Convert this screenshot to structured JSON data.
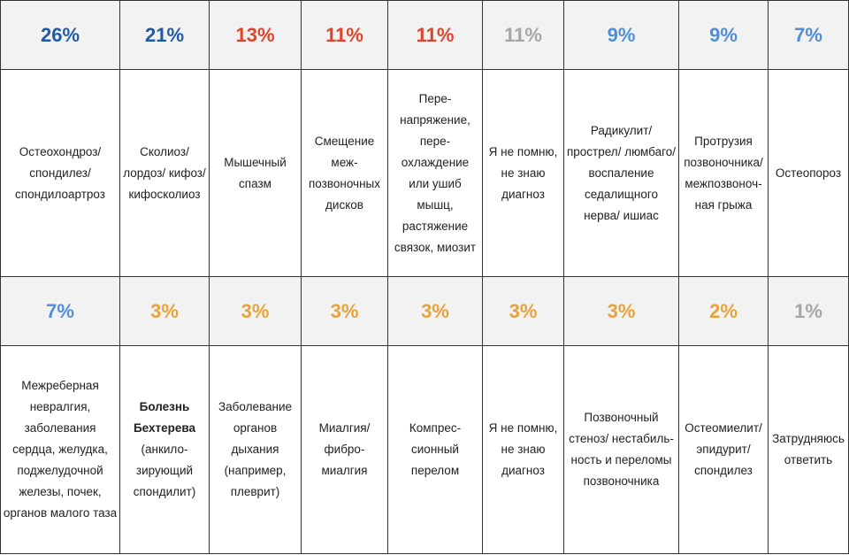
{
  "chart_data": {
    "type": "table",
    "title": "",
    "rows": [
      {
        "cells": [
          {
            "percent": "26%",
            "value": 26,
            "color": "#1f5aa6",
            "label": "Остеохондроз/ спондилез/ спондилоартроз"
          },
          {
            "percent": "21%",
            "value": 21,
            "color": "#1f5aa6",
            "label": "Сколиоз/ лордоз/ кифоз/ кифосколиоз"
          },
          {
            "percent": "13%",
            "value": 13,
            "color": "#e0432c",
            "label": "Мышечный спазм"
          },
          {
            "percent": "11%",
            "value": 11,
            "color": "#e0432c",
            "label": "Смещение меж- позвоночных дисков"
          },
          {
            "percent": "11%",
            "value": 11,
            "color": "#e0432c",
            "label": "Пере- напряжение, пере- охлаждение или ушиб мышц, растяжение связок, миозит"
          },
          {
            "percent": "11%",
            "value": 11,
            "color": "#a6a6a6",
            "label": "Я не помню, не знаю диагноз"
          },
          {
            "percent": "9%",
            "value": 9,
            "color": "#4f8fd8",
            "label": "Радикулит/ прострел/ люмбаго/ воспаление седалищного нерва/ ишиас"
          },
          {
            "percent": "9%",
            "value": 9,
            "color": "#4f8fd8",
            "label": "Протрузия позвоночника/ межпозвоноч- ная грыжа"
          },
          {
            "percent": "7%",
            "value": 7,
            "color": "#4f8fd8",
            "label": "Остеопороз"
          }
        ]
      },
      {
        "cells": [
          {
            "percent": "7%",
            "value": 7,
            "color": "#4f8fd8",
            "label": "Межреберная невралгия, заболевания сердца, желудка, поджелудочной железы, почек, органов малого таза"
          },
          {
            "percent": "3%",
            "value": 3,
            "color": "#e8a23a",
            "label_bold": "Болезнь Бехтерева",
            "label": "(анкило- зирующий спондилит)"
          },
          {
            "percent": "3%",
            "value": 3,
            "color": "#e8a23a",
            "label": "Заболевание органов дыхания (например, плеврит)"
          },
          {
            "percent": "3%",
            "value": 3,
            "color": "#e8a23a",
            "label": "Миалгия/ фибро- миалгия"
          },
          {
            "percent": "3%",
            "value": 3,
            "color": "#e8a23a",
            "label": "Компрес- сионный перелом"
          },
          {
            "percent": "3%",
            "value": 3,
            "color": "#e8a23a",
            "label": "Я не помню, не знаю диагноз"
          },
          {
            "percent": "3%",
            "value": 3,
            "color": "#e8a23a",
            "label": "Позвоночный стеноз/ нестабиль- ность и переломы позвоночника"
          },
          {
            "percent": "2%",
            "value": 2,
            "color": "#e8a23a",
            "label": "Остеомиелит/ эпидурит/ спондилез"
          },
          {
            "percent": "1%",
            "value": 1,
            "color": "#a6a6a6",
            "label": "Затрудняюсь ответить"
          }
        ]
      }
    ]
  }
}
